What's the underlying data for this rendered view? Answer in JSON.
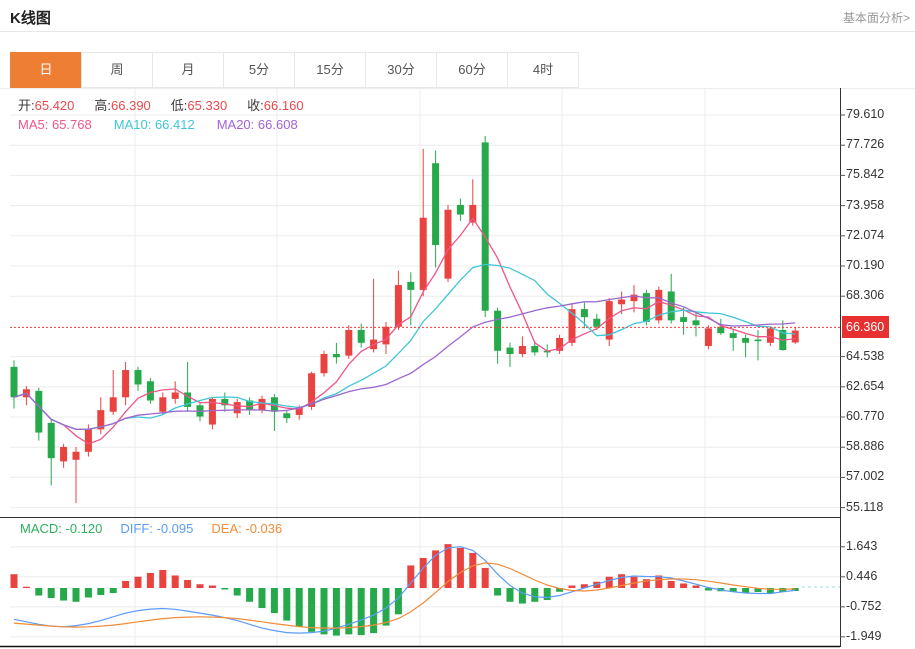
{
  "page": {
    "title": "K线图",
    "link": "基本面分析>"
  },
  "tabs": {
    "items": [
      {
        "label": "日",
        "active": true
      },
      {
        "label": "周",
        "active": false
      },
      {
        "label": "月",
        "active": false
      },
      {
        "label": "5分",
        "active": false
      },
      {
        "label": "15分",
        "active": false
      },
      {
        "label": "30分",
        "active": false
      },
      {
        "label": "60分",
        "active": false
      },
      {
        "label": "4时",
        "active": false
      }
    ]
  },
  "price_info": {
    "items": [
      {
        "label": "开:",
        "value": "65.420"
      },
      {
        "label": "高:",
        "value": "66.390"
      },
      {
        "label": "低:",
        "value": "65.330"
      },
      {
        "label": "收:",
        "value": "66.160"
      }
    ]
  },
  "ma_info": {
    "items": [
      {
        "label": "MA5:",
        "value": "65.768"
      },
      {
        "label": "MA10:",
        "value": "66.412"
      },
      {
        "label": "MA20:",
        "value": "66.608"
      }
    ]
  },
  "macd_info": {
    "items": [
      {
        "label": "MACD:",
        "value": "-0.120"
      },
      {
        "label": "DIFF:",
        "value": "-0.095"
      },
      {
        "label": "DEA:",
        "value": "-0.036"
      }
    ]
  },
  "price_axis": {
    "current_price": "66.360"
  },
  "colors": {
    "up": "#e8433f",
    "down": "#26a94a",
    "ma5": "#f0558a",
    "ma10": "#3ec6d8",
    "ma20": "#9c68ce",
    "diff": "#5b9cf8",
    "dea": "#f08c3a",
    "grid": "#ececec",
    "axis": "#333333",
    "frame": "#111111",
    "dotted_price": "#f4403c",
    "badge_bg": "#e73030",
    "macd_zero_dash": "#9fd8e4"
  },
  "chart_data": {
    "type": "candlestick",
    "title": "K线图",
    "legend_position": "top-left-overlay",
    "grid": true,
    "panels": [
      {
        "name": "price",
        "type": "candlestick",
        "x_step": 12.4,
        "ylim": [
          54.5,
          80.3
        ],
        "axis_ticks": [
          79.61,
          77.726,
          75.842,
          73.958,
          72.074,
          70.19,
          68.306,
          64.538,
          62.654,
          60.77,
          58.886,
          57.002,
          55.118
        ],
        "current_price": 66.36,
        "ma_periods": [
          5,
          10,
          20
        ],
        "ohlc": [
          [
            63.9,
            64.3,
            61.3,
            62.0
          ],
          [
            62.0,
            62.7,
            61.5,
            62.5
          ],
          [
            62.4,
            62.6,
            59.3,
            59.8
          ],
          [
            60.4,
            60.6,
            56.5,
            58.2
          ],
          [
            58.0,
            59.1,
            57.6,
            58.9
          ],
          [
            58.1,
            58.9,
            55.4,
            58.6
          ],
          [
            58.6,
            60.3,
            58.3,
            60.0
          ],
          [
            60.0,
            62.0,
            59.7,
            61.2
          ],
          [
            61.1,
            63.7,
            60.9,
            62.0
          ],
          [
            62.0,
            64.2,
            61.5,
            63.7
          ],
          [
            63.7,
            63.9,
            62.4,
            62.8
          ],
          [
            63.0,
            63.2,
            61.6,
            61.8
          ],
          [
            61.1,
            62.3,
            60.9,
            62.0
          ],
          [
            61.9,
            63.0,
            61.6,
            62.3
          ],
          [
            62.3,
            64.2,
            61.1,
            61.4
          ],
          [
            61.5,
            61.7,
            60.5,
            60.8
          ],
          [
            60.3,
            62.0,
            60.0,
            61.9
          ],
          [
            61.9,
            62.3,
            61.1,
            61.5
          ],
          [
            61.0,
            61.9,
            60.7,
            61.7
          ],
          [
            61.8,
            62.0,
            60.9,
            61.2
          ],
          [
            61.2,
            62.1,
            61.0,
            61.9
          ],
          [
            62.0,
            62.2,
            59.9,
            61.1
          ],
          [
            61.0,
            61.2,
            60.4,
            60.7
          ],
          [
            60.9,
            61.5,
            60.6,
            61.4
          ],
          [
            61.4,
            63.6,
            61.2,
            63.5
          ],
          [
            63.5,
            64.9,
            63.3,
            64.7
          ],
          [
            64.7,
            65.4,
            64.1,
            64.5
          ],
          [
            64.6,
            66.5,
            64.4,
            66.2
          ],
          [
            66.2,
            66.6,
            65.1,
            65.4
          ],
          [
            65.0,
            69.4,
            64.8,
            65.6
          ],
          [
            65.3,
            66.7,
            64.7,
            66.4
          ],
          [
            66.4,
            69.9,
            66.2,
            69.0
          ],
          [
            69.2,
            69.8,
            66.5,
            68.7
          ],
          [
            68.7,
            77.5,
            68.3,
            73.2
          ],
          [
            76.6,
            77.4,
            70.1,
            71.5
          ],
          [
            69.4,
            74.0,
            69.2,
            73.7
          ],
          [
            74.0,
            74.4,
            73.0,
            73.4
          ],
          [
            72.9,
            75.6,
            72.7,
            74.0
          ],
          [
            77.9,
            78.3,
            67.0,
            67.4
          ],
          [
            67.4,
            67.6,
            64.1,
            64.9
          ],
          [
            65.1,
            65.4,
            63.9,
            64.7
          ],
          [
            64.7,
            65.8,
            64.5,
            65.2
          ],
          [
            65.2,
            65.5,
            64.6,
            64.8
          ],
          [
            64.9,
            65.3,
            64.5,
            64.8
          ],
          [
            64.9,
            65.9,
            64.7,
            65.7
          ],
          [
            65.4,
            67.8,
            65.2,
            67.5
          ],
          [
            67.5,
            67.9,
            66.3,
            67.0
          ],
          [
            66.9,
            67.2,
            66.2,
            66.4
          ],
          [
            65.6,
            68.2,
            65.2,
            68.0
          ],
          [
            67.8,
            68.6,
            67.2,
            68.1
          ],
          [
            68.0,
            69.0,
            67.3,
            68.4
          ],
          [
            68.5,
            68.7,
            66.5,
            66.7
          ],
          [
            66.8,
            68.9,
            66.6,
            68.7
          ],
          [
            68.6,
            69.7,
            66.6,
            66.8
          ],
          [
            67.0,
            67.6,
            65.9,
            66.7
          ],
          [
            66.8,
            67.3,
            65.8,
            66.5
          ],
          [
            65.2,
            66.5,
            65.0,
            66.3
          ],
          [
            66.4,
            66.9,
            65.9,
            66.0
          ],
          [
            66.0,
            66.2,
            64.9,
            65.7
          ],
          [
            65.7,
            65.9,
            64.5,
            65.4
          ],
          [
            65.6,
            66.2,
            64.3,
            65.5
          ],
          [
            65.4,
            66.4,
            65.2,
            66.3
          ],
          [
            66.2,
            66.8,
            64.9,
            64.95
          ],
          [
            65.42,
            66.39,
            65.33,
            66.16
          ]
        ]
      },
      {
        "name": "macd",
        "type": "bar+line",
        "axis_ticks": [
          1.643,
          0.446,
          -0.752,
          -1.949
        ],
        "hist": [
          0.55,
          0.05,
          -0.3,
          -0.4,
          -0.5,
          -0.55,
          -0.38,
          -0.28,
          -0.2,
          0.28,
          0.45,
          0.6,
          0.72,
          0.5,
          0.32,
          0.15,
          0.1,
          -0.06,
          -0.3,
          -0.55,
          -0.8,
          -1.0,
          -1.3,
          -1.55,
          -1.75,
          -1.85,
          -1.9,
          -1.85,
          -1.88,
          -1.8,
          -1.5,
          -1.05,
          0.9,
          1.2,
          1.5,
          1.75,
          1.6,
          1.4,
          0.8,
          -0.3,
          -0.55,
          -0.62,
          -0.55,
          -0.48,
          -0.15,
          0.1,
          0.15,
          0.25,
          0.45,
          0.55,
          0.45,
          0.35,
          0.5,
          0.28,
          0.18,
          0.1,
          -0.1,
          -0.13,
          -0.16,
          -0.18,
          -0.16,
          -0.2,
          -0.16,
          -0.12
        ],
        "series": [
          {
            "name": "DIFF",
            "values": [
              -1.25,
              -1.35,
              -1.45,
              -1.52,
              -1.55,
              -1.5,
              -1.42,
              -1.3,
              -1.15,
              -1.0,
              -0.9,
              -0.84,
              -0.82,
              -0.85,
              -0.92,
              -1.0,
              -1.08,
              -1.18,
              -1.3,
              -1.45,
              -1.6,
              -1.7,
              -1.78,
              -1.8,
              -1.78,
              -1.72,
              -1.6,
              -1.45,
              -1.28,
              -1.08,
              -0.8,
              -0.4,
              0.2,
              0.8,
              1.3,
              1.6,
              1.65,
              1.5,
              1.1,
              0.55,
              0.1,
              -0.2,
              -0.35,
              -0.38,
              -0.3,
              -0.15,
              0.0,
              0.15,
              0.3,
              0.42,
              0.48,
              0.46,
              0.45,
              0.4,
              0.28,
              0.15,
              0.02,
              -0.08,
              -0.15,
              -0.2,
              -0.22,
              -0.22,
              -0.15,
              -0.095
            ]
          },
          {
            "name": "DEA",
            "values": [
              -1.4,
              -1.44,
              -1.48,
              -1.52,
              -1.55,
              -1.56,
              -1.55,
              -1.52,
              -1.48,
              -1.42,
              -1.35,
              -1.28,
              -1.22,
              -1.18,
              -1.16,
              -1.15,
              -1.16,
              -1.18,
              -1.22,
              -1.28,
              -1.35,
              -1.42,
              -1.48,
              -1.54,
              -1.58,
              -1.6,
              -1.6,
              -1.58,
              -1.54,
              -1.48,
              -1.38,
              -1.22,
              -0.95,
              -0.6,
              -0.18,
              0.25,
              0.62,
              0.88,
              1.0,
              0.95,
              0.78,
              0.55,
              0.32,
              0.12,
              -0.02,
              -0.1,
              -0.12,
              -0.08,
              0.0,
              0.1,
              0.2,
              0.28,
              0.33,
              0.36,
              0.36,
              0.33,
              0.27,
              0.2,
              0.12,
              0.05,
              -0.01,
              -0.05,
              -0.05,
              -0.036
            ]
          }
        ]
      }
    ]
  }
}
